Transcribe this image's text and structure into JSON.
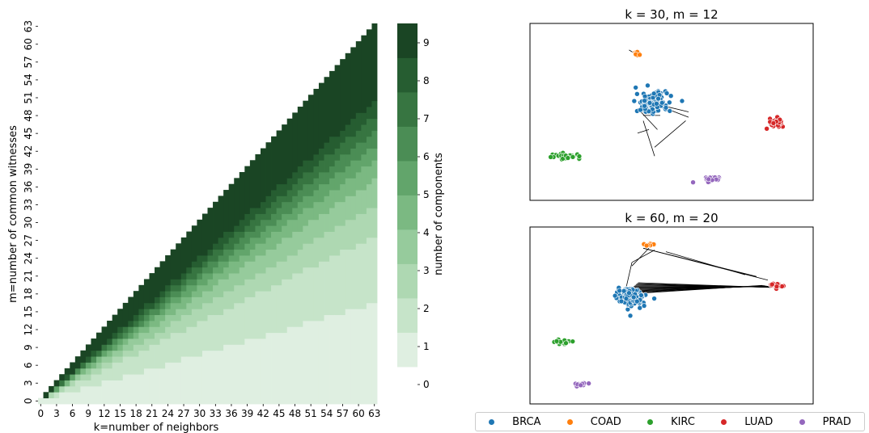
{
  "chart_data": [
    {
      "type": "heatmap",
      "xlabel": "k=number of neighbors",
      "ylabel": "m=number of common witnesses",
      "x_range": [
        0,
        64
      ],
      "y_range": [
        0,
        64
      ],
      "x_tick_labels": [
        "0",
        "3",
        "6",
        "9",
        "12",
        "15",
        "18",
        "21",
        "24",
        "27",
        "30",
        "33",
        "36",
        "39",
        "42",
        "45",
        "48",
        "51",
        "54",
        "57",
        "60",
        "63"
      ],
      "y_tick_labels": [
        "0",
        "3",
        "6",
        "9",
        "12",
        "15",
        "18",
        "21",
        "24",
        "27",
        "30",
        "33",
        "36",
        "39",
        "42",
        "45",
        "48",
        "51",
        "54",
        "57",
        "60",
        "63"
      ],
      "rule": "cells with m > k are empty; otherwise value = number of components (0-9, saturating at 9)",
      "colorbar": {
        "label": "number of components",
        "ticks": [
          "0",
          "1",
          "2",
          "3",
          "4",
          "5",
          "6",
          "7",
          "8",
          "9"
        ],
        "colors": [
          "#dfefe1",
          "#c6e4c9",
          "#aed8b2",
          "#96cb9c",
          "#7bb982",
          "#62a56b",
          "#4b8d55",
          "#377541",
          "#265d31",
          "#1a4524"
        ]
      },
      "component_thresholds": [
        {
          "value": 1,
          "m_over_k_above": 0.26
        },
        {
          "value": 2,
          "m_over_k_above": 0.44
        },
        {
          "value": 3,
          "m_over_k_above": 0.52
        },
        {
          "value": 4,
          "m_over_k_above": 0.59
        },
        {
          "value": 5,
          "m_over_k_above": 0.64
        },
        {
          "value": 6,
          "m_over_k_above": 0.68
        },
        {
          "value": 7,
          "m_over_k_above": 0.72
        },
        {
          "value": 8,
          "m_over_k_above": 0.76
        },
        {
          "value": 9,
          "m_over_k_above": 0.8
        }
      ]
    },
    {
      "type": "scatter",
      "title": "k = 30, m = 12",
      "clusters": [
        {
          "name": "BRCA",
          "center": [
            0.43,
            0.55
          ],
          "spread": [
            0.055,
            0.06
          ],
          "count": 160
        },
        {
          "name": "COAD",
          "center": [
            0.38,
            0.83
          ],
          "spread": [
            0.012,
            0.012
          ],
          "count": 8
        },
        {
          "name": "KIRC",
          "center": [
            0.13,
            0.25
          ],
          "spread": [
            0.05,
            0.015
          ],
          "count": 45
        },
        {
          "name": "LUAD",
          "center": [
            0.87,
            0.44
          ],
          "spread": [
            0.025,
            0.02
          ],
          "count": 30
        },
        {
          "name": "PRAD",
          "center": [
            0.64,
            0.12
          ],
          "spread": [
            0.03,
            0.015
          ],
          "count": 25
        }
      ]
    },
    {
      "type": "scatter",
      "title": "k = 60, m = 20",
      "clusters": [
        {
          "name": "BRCA",
          "center": [
            0.36,
            0.6
          ],
          "spread": [
            0.05,
            0.05
          ],
          "count": 140
        },
        {
          "name": "COAD",
          "center": [
            0.42,
            0.9
          ],
          "spread": [
            0.02,
            0.012
          ],
          "count": 12
        },
        {
          "name": "KIRC",
          "center": [
            0.12,
            0.35
          ],
          "spread": [
            0.03,
            0.012
          ],
          "count": 18
        },
        {
          "name": "LUAD",
          "center": [
            0.87,
            0.67
          ],
          "spread": [
            0.025,
            0.012
          ],
          "count": 20
        },
        {
          "name": "PRAD",
          "center": [
            0.18,
            0.11
          ],
          "spread": [
            0.03,
            0.01
          ],
          "count": 16
        }
      ]
    }
  ],
  "legend": [
    {
      "label": "BRCA",
      "color": "#1f77b4"
    },
    {
      "label": "COAD",
      "color": "#ff7f0e"
    },
    {
      "label": "KIRC",
      "color": "#2ca02c"
    },
    {
      "label": "LUAD",
      "color": "#d62728"
    },
    {
      "label": "PRAD",
      "color": "#9467bd"
    }
  ]
}
